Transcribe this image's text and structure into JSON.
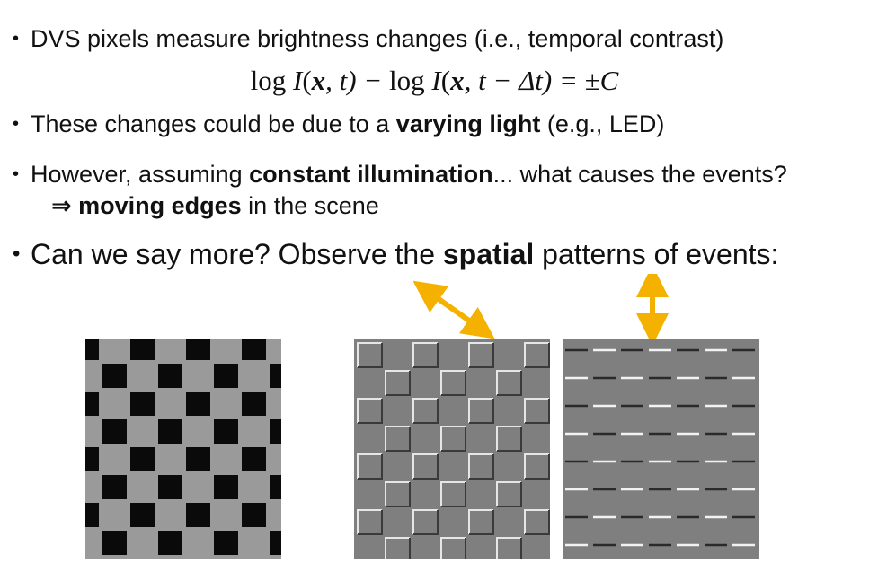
{
  "bullets": {
    "b1": "DVS pixels measure brightness changes (i.e., temporal contrast)",
    "equation": {
      "log1": "log",
      "I1": "I",
      "open1": "(",
      "x1": "x",
      "t1": ", t) − ",
      "log2": "log",
      "I2": "I",
      "open2": "(",
      "x2": "x",
      "t2": ", t − Δt) = ±",
      "C": "C"
    },
    "b2_pre": "These changes could be due to a ",
    "b2_bold": "varying light",
    "b2_post": " (e.g., LED)",
    "b3_pre": "However, assuming ",
    "b3_bold": "constant illumination",
    "b3_post": "... what causes the events?",
    "b3_sub_arrow": "⇒ ",
    "b3_sub_bold": "moving edges",
    "b3_sub_post": " in the scene",
    "b4_pre": "Can we say more?  Observe the ",
    "b4_bold": "spatial",
    "b4_post": " patterns of events:"
  },
  "colors": {
    "arrow": "#f5b100",
    "text": "#111111"
  }
}
